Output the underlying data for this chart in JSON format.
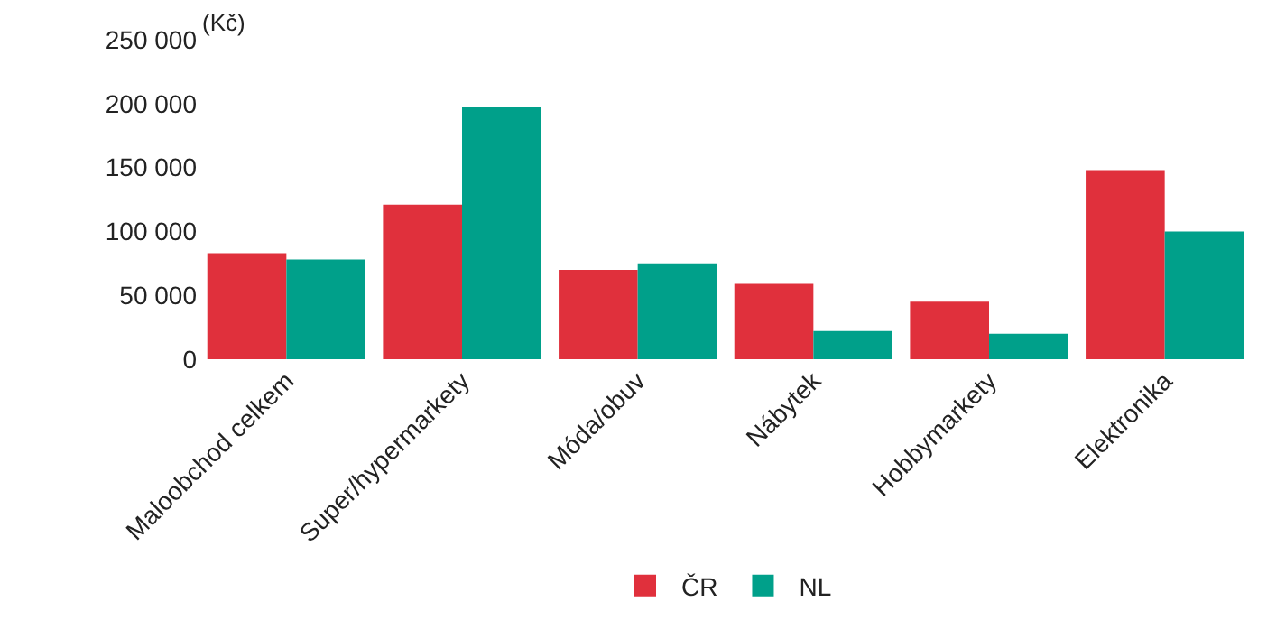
{
  "chart_data": {
    "type": "bar",
    "ylabel": "(Kč)",
    "categories": [
      "Maloobchod celkem",
      "Super/hypermarkety",
      "Móda/obuv",
      "Nábytek",
      "Hobbymarkety",
      "Elektronika"
    ],
    "series": [
      {
        "name": "ČR",
        "color": "#e0303c",
        "values": [
          83000,
          121000,
          70000,
          59000,
          45000,
          148000
        ]
      },
      {
        "name": "NL",
        "color": "#00a08a",
        "values": [
          78000,
          197000,
          75000,
          22000,
          20000,
          100000
        ]
      }
    ],
    "ylim": [
      0,
      250000
    ],
    "yticks": [
      {
        "value": 0,
        "label": "0"
      },
      {
        "value": 50000,
        "label": "50 000"
      },
      {
        "value": 100000,
        "label": "100 000"
      },
      {
        "value": 150000,
        "label": "150 000"
      },
      {
        "value": 200000,
        "label": "200 000"
      },
      {
        "value": 250000,
        "label": "250 000"
      }
    ],
    "legend": "bottom"
  }
}
